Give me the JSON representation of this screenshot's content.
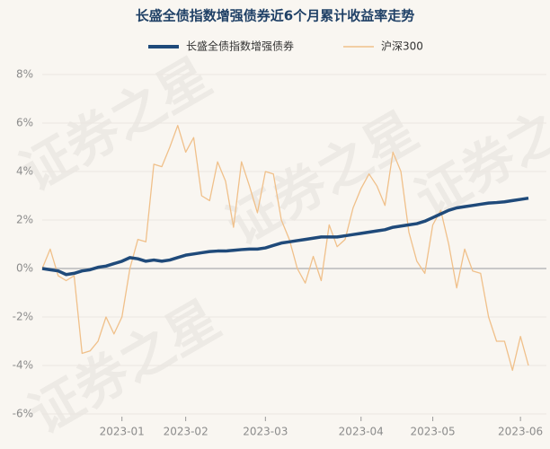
{
  "chart_data": {
    "type": "line",
    "title": "长盛全债指数增强债券近6个月累计收益率走势",
    "watermark": "证券之星",
    "categories": [
      null,
      null,
      null,
      null,
      null,
      null,
      null,
      null,
      null,
      null,
      "2023-01",
      null,
      null,
      null,
      null,
      null,
      null,
      null,
      "2023-02",
      null,
      null,
      null,
      null,
      null,
      null,
      null,
      null,
      null,
      "2023-03",
      null,
      null,
      null,
      null,
      null,
      null,
      null,
      null,
      null,
      null,
      null,
      "2023-04",
      null,
      null,
      null,
      null,
      null,
      null,
      null,
      null,
      "2023-05",
      null,
      null,
      null,
      null,
      null,
      null,
      null,
      null,
      null,
      null,
      "2023-06",
      null
    ],
    "series": [
      {
        "name": "长盛全债指数增强债券",
        "color": "#1f4a7a",
        "values": [
          0,
          -0.05,
          -0.1,
          -0.25,
          -0.2,
          -0.1,
          -0.05,
          0.05,
          0.1,
          0.2,
          0.3,
          0.45,
          0.4,
          0.3,
          0.35,
          0.3,
          0.35,
          0.45,
          0.55,
          0.6,
          0.65,
          0.7,
          0.72,
          0.72,
          0.75,
          0.78,
          0.8,
          0.8,
          0.85,
          0.95,
          1.05,
          1.1,
          1.15,
          1.2,
          1.25,
          1.3,
          1.3,
          1.3,
          1.35,
          1.4,
          1.45,
          1.5,
          1.55,
          1.6,
          1.7,
          1.75,
          1.8,
          1.85,
          1.95,
          2.1,
          2.25,
          2.4,
          2.5,
          2.55,
          2.6,
          2.65,
          2.7,
          2.72,
          2.75,
          2.8,
          2.85,
          2.9
        ]
      },
      {
        "name": "沪深300",
        "color": "#f0c08a",
        "values": [
          0,
          0.8,
          -0.3,
          -0.5,
          -0.3,
          -3.5,
          -3.4,
          -3.0,
          -2.0,
          -2.7,
          -2.0,
          0,
          1.2,
          1.1,
          4.3,
          4.2,
          5.0,
          5.9,
          4.8,
          5.4,
          3.0,
          2.8,
          4.4,
          3.6,
          1.7,
          4.4,
          3.4,
          2.3,
          4.0,
          3.9,
          2.0,
          1.2,
          0,
          -0.6,
          0.5,
          -0.5,
          1.8,
          0.9,
          1.2,
          2.5,
          3.3,
          3.9,
          3.4,
          2.6,
          4.8,
          4.0,
          1.5,
          0.3,
          -0.2,
          1.8,
          2.4,
          1.0,
          -0.8,
          0.8,
          -0.1,
          -0.2,
          -2.0,
          -3.0,
          -3.0,
          -4.2,
          -2.8,
          -4.0
        ]
      }
    ],
    "ylim": [
      -6,
      8
    ],
    "yticks": [
      {
        "value": -6,
        "label": "-6%"
      },
      {
        "value": -4,
        "label": "-4%"
      },
      {
        "value": -2,
        "label": "-2%"
      },
      {
        "value": 0,
        "label": "0%"
      },
      {
        "value": 2,
        "label": "2%"
      },
      {
        "value": 4,
        "label": "4%"
      },
      {
        "value": 6,
        "label": "6%"
      },
      {
        "value": 8,
        "label": "8%"
      }
    ],
    "grid": true
  }
}
